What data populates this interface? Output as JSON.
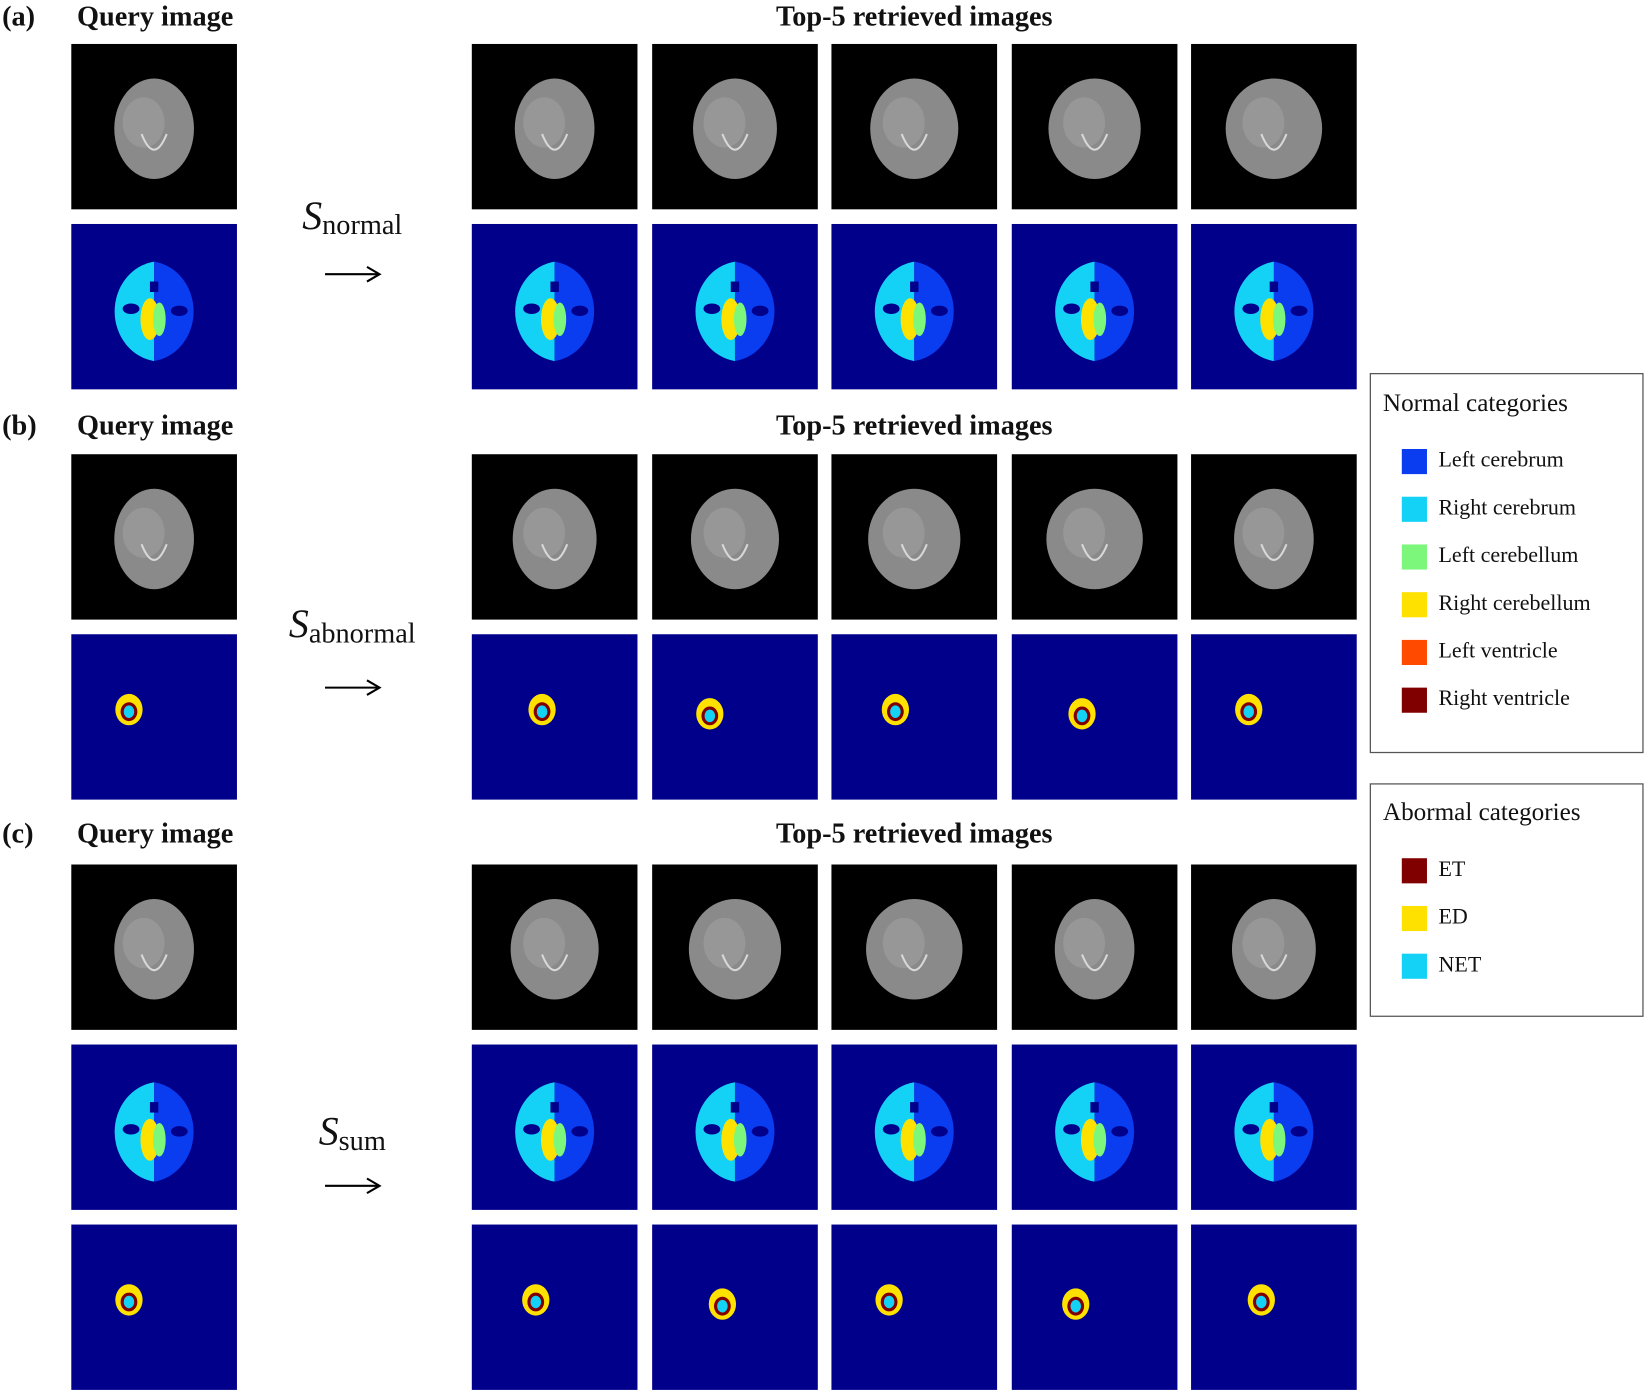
{
  "panels": [
    {
      "label": "(a)",
      "query_title": "Query image",
      "retrieved_title": "Top-5 retrieved images",
      "measure": {
        "symbol": "S",
        "subscript": "normal"
      }
    },
    {
      "label": "(b)",
      "query_title": "Query image",
      "retrieved_title": "Top-5 retrieved images",
      "measure": {
        "symbol": "S",
        "subscript": "abnormal"
      }
    },
    {
      "label": "(c)",
      "query_title": "Query image",
      "retrieved_title": "Top-5 retrieved images",
      "measure": {
        "symbol": "S",
        "subscript": "sum"
      }
    }
  ],
  "legends": [
    {
      "title": "Normal categories",
      "items": [
        {
          "label": "Left cerebrum",
          "color": "#0a3cf0"
        },
        {
          "label": "Right cerebrum",
          "color": "#14d2f5"
        },
        {
          "label": "Left cerebellum",
          "color": "#7cf77c"
        },
        {
          "label": "Right cerebellum",
          "color": "#ffe100"
        },
        {
          "label": "Left ventricle",
          "color": "#ff4a00"
        },
        {
          "label": "Right ventricle",
          "color": "#800000"
        }
      ]
    },
    {
      "title": "Abormal categories",
      "items": [
        {
          "label": "ET",
          "color": "#800000"
        },
        {
          "label": "ED",
          "color": "#ffe100"
        },
        {
          "label": "NET",
          "color": "#14d2f5"
        }
      ]
    }
  ]
}
